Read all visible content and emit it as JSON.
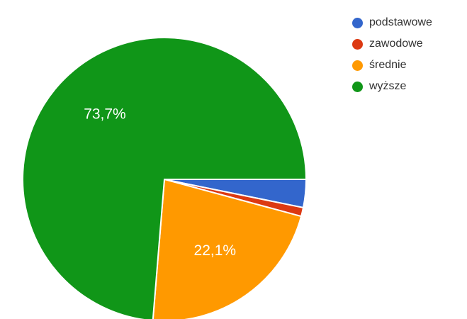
{
  "chart_data": {
    "type": "pie",
    "title": "",
    "slices": [
      {
        "label": "podstawowe",
        "value": 3.2,
        "color": "#3366cc"
      },
      {
        "label": "zawodowe",
        "value": 1.0,
        "color": "#dc3912"
      },
      {
        "label": "średnie",
        "value": 22.1,
        "color": "#ff9900",
        "data_label": "22,1%"
      },
      {
        "label": "wyższe",
        "value": 73.7,
        "color": "#109618",
        "data_label": "73,7%"
      }
    ],
    "start_angle_deg": 90,
    "direction": "clockwise",
    "legend_position": "top-right"
  }
}
